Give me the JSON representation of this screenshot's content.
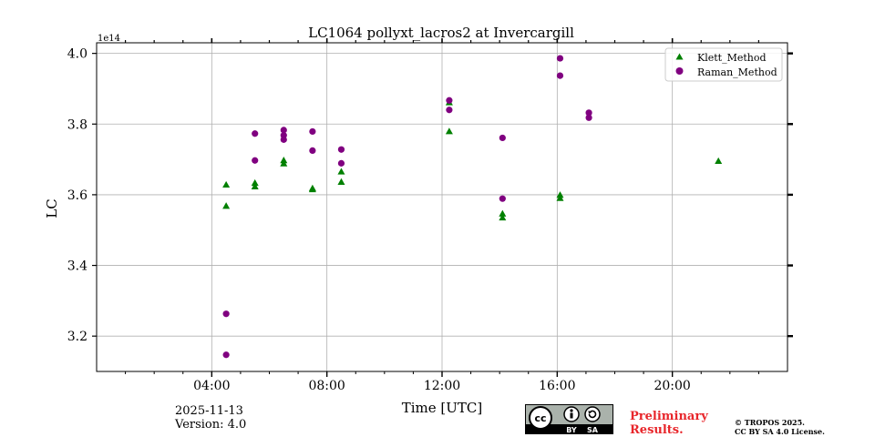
{
  "chart_data": {
    "type": "scatter",
    "title": "LC1064 pollyxt_lacros2 at Invercargill",
    "xlabel": "Time [UTC]",
    "ylabel": "LC",
    "y_offset_label": "1e14",
    "x_unit": "hours",
    "xlim": [
      0,
      24
    ],
    "ylim": [
      3.1,
      4.03
    ],
    "x_major_ticks": [
      4,
      8,
      12,
      16,
      20
    ],
    "x_tick_labels": [
      "04:00",
      "08:00",
      "12:00",
      "16:00",
      "20:00"
    ],
    "y_ticks": [
      3.2,
      3.4,
      3.6,
      3.8,
      4.0
    ],
    "y_tick_labels": [
      "3.2",
      "3.4",
      "3.6",
      "3.8",
      "4.0"
    ],
    "grid": true,
    "legend_position": "top-right",
    "series": [
      {
        "name": "Klett_Method",
        "color": "#008000",
        "marker": "triangle",
        "x": [
          4.5,
          4.5,
          5.5,
          5.5,
          6.5,
          6.5,
          7.5,
          7.5,
          8.5,
          8.5,
          12.25,
          12.25,
          14.1,
          14.1,
          16.1,
          16.1,
          21.6
        ],
        "y": [
          3.628,
          3.568,
          3.633,
          3.623,
          3.697,
          3.688,
          3.618,
          3.615,
          3.665,
          3.636,
          3.861,
          3.779,
          3.546,
          3.535,
          3.599,
          3.59,
          3.695
        ]
      },
      {
        "name": "Raman_Method",
        "color": "#800080",
        "marker": "circle",
        "x": [
          4.5,
          4.5,
          5.5,
          5.5,
          6.5,
          6.5,
          6.5,
          7.5,
          7.5,
          8.5,
          8.5,
          12.25,
          12.25,
          14.1,
          14.1,
          16.1,
          16.1,
          17.1,
          17.1
        ],
        "y": [
          3.263,
          3.147,
          3.773,
          3.697,
          3.783,
          3.768,
          3.756,
          3.779,
          3.725,
          3.728,
          3.689,
          3.867,
          3.84,
          3.761,
          3.589,
          3.986,
          3.937,
          3.832,
          3.818
        ]
      }
    ]
  },
  "footer": {
    "date": "2025-11-13",
    "version": "Version: 4.0",
    "preliminary_line1": "Preliminary",
    "preliminary_line2": "Results.",
    "copyright_line1": "© TROPOS 2025.",
    "copyright_line2": "CC BY SA 4.0 License.",
    "cc_badge": {
      "cc": "cc",
      "by": "BY",
      "sa": "SA"
    }
  }
}
